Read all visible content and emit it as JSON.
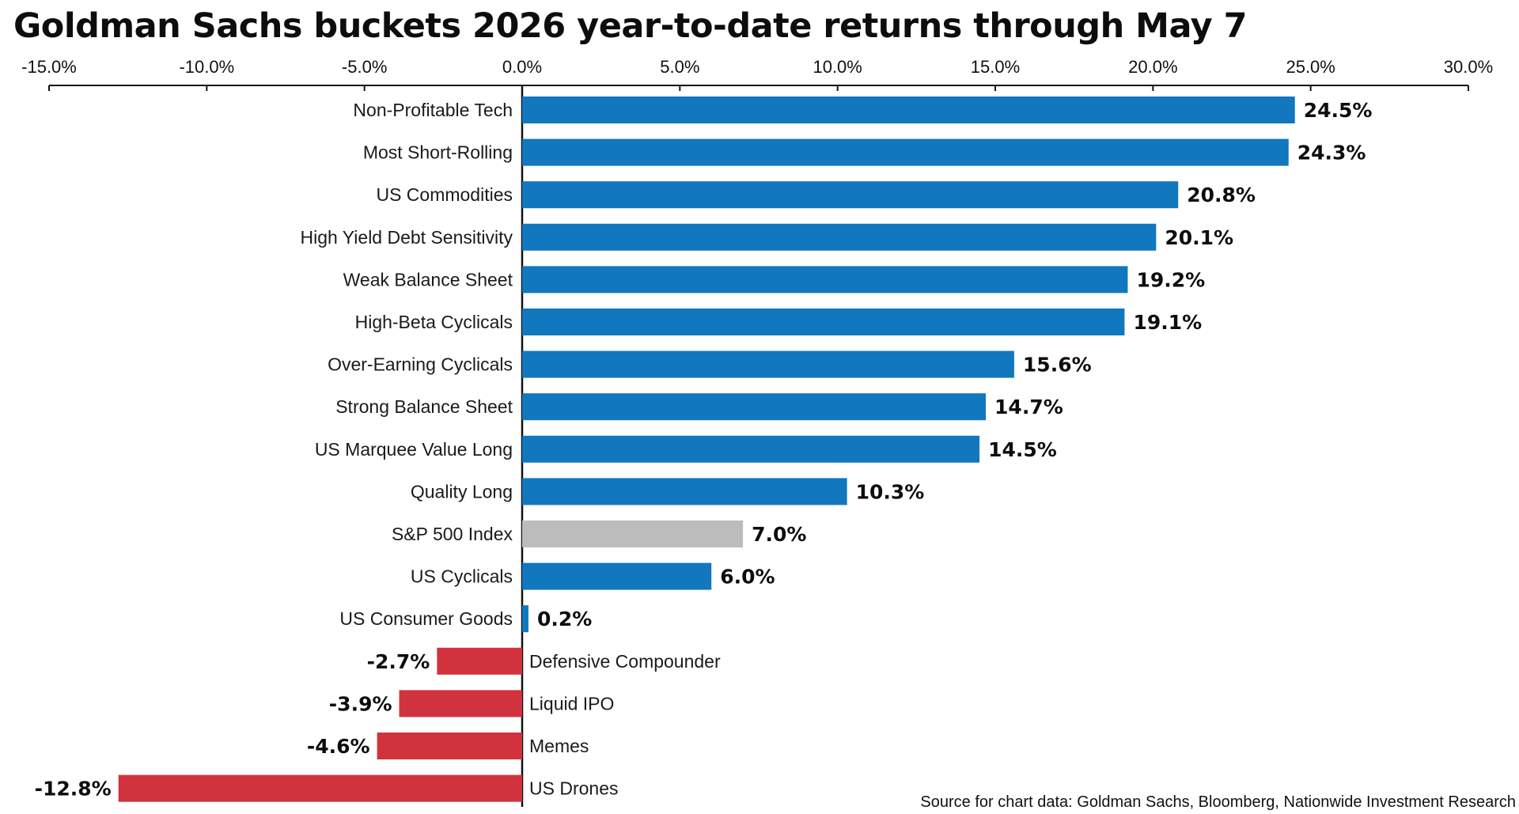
{
  "chart_data": {
    "type": "bar",
    "orientation": "horizontal",
    "title": "Goldman Sachs buckets 2026 year-to-date returns through May 7",
    "xlabel": "",
    "ylabel": "",
    "xlim": [
      -15,
      30
    ],
    "x_ticks": [
      -15,
      -10,
      -5,
      0,
      5,
      10,
      15,
      20,
      25,
      30
    ],
    "x_tick_labels": [
      "-15.0%",
      "-10.0%",
      "-5.0%",
      "0.0%",
      "5.0%",
      "10.0%",
      "15.0%",
      "20.0%",
      "25.0%",
      "30.0%"
    ],
    "axis_position": "top",
    "grid": false,
    "legend": "none",
    "categories": [
      "Non-Profitable Tech",
      "Most Short-Rolling",
      "US Commodities",
      "High Yield Debt Sensitivity",
      "Weak Balance Sheet",
      "High-Beta Cyclicals",
      "Over-Earning Cyclicals",
      "Strong Balance Sheet",
      "US Marquee Value Long",
      "Quality Long",
      "S&P 500 Index",
      "US Cyclicals",
      "US Consumer Goods",
      "Defensive Compounder",
      "Liquid IPO",
      "Memes",
      "US Drones"
    ],
    "values": [
      24.5,
      24.3,
      20.8,
      20.1,
      19.2,
      19.1,
      15.6,
      14.7,
      14.5,
      10.3,
      7.0,
      6.0,
      0.2,
      -2.7,
      -3.9,
      -4.6,
      -12.8
    ],
    "value_labels": [
      "24.5%",
      "24.3%",
      "20.8%",
      "20.1%",
      "19.2%",
      "19.1%",
      "15.6%",
      "14.7%",
      "14.5%",
      "10.3%",
      "7.0%",
      "6.0%",
      "0.2%",
      "-2.7%",
      "-3.9%",
      "-4.6%",
      "-12.8%"
    ],
    "colors": {
      "positive": "#1177be",
      "negative": "#d0333e",
      "benchmark": "#bcbcbc",
      "axis": "#111111"
    },
    "benchmark_category": "S&P 500 Index",
    "source": "Source for chart data: Goldman Sachs, Bloomberg, Nationwide Investment Research"
  }
}
